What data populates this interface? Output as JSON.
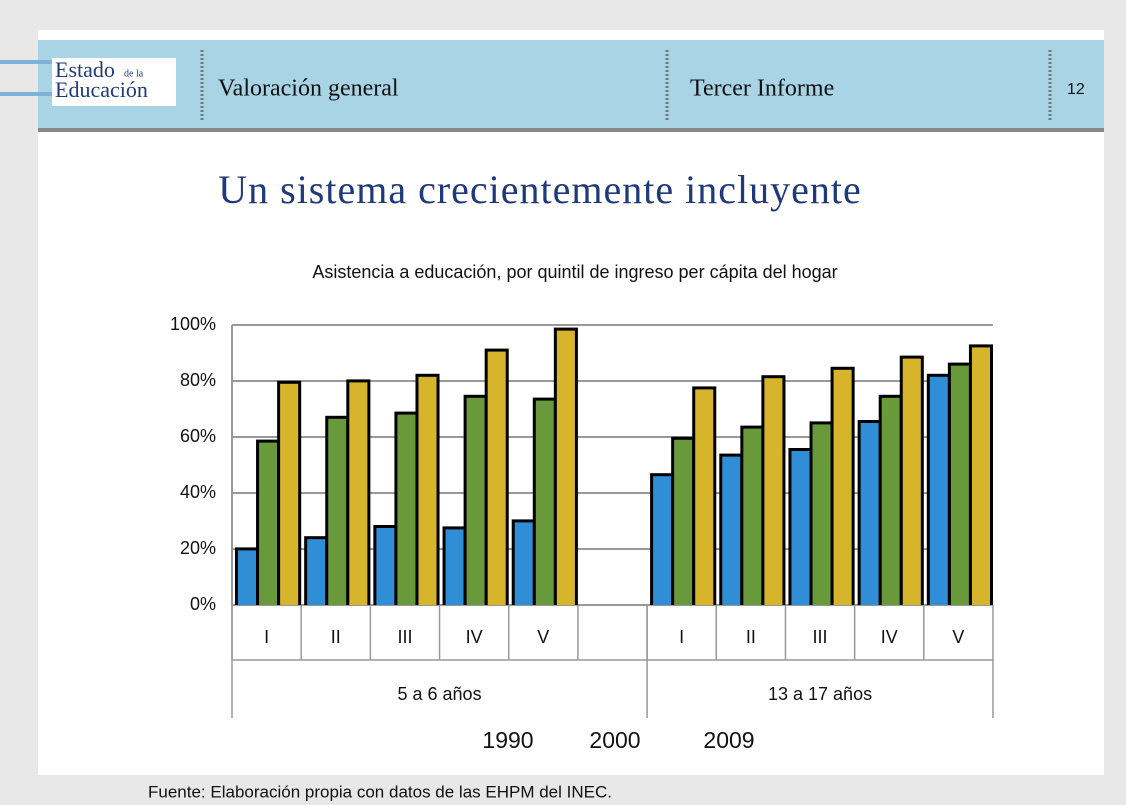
{
  "header": {
    "logo_top": "Estado",
    "logo_small": "de la",
    "logo_bottom": "Educación",
    "section": "Valoración general",
    "report": "Tercer Informe",
    "page": "12"
  },
  "slide_title": "Un sistema crecientemente incluyente",
  "source": "Fuente: Elaboración propia con datos de las EHPM del INEC.",
  "chart_data": {
    "type": "bar",
    "title": "Asistencia a educación, por quintil de ingreso per cápita del hogar",
    "categories": [
      "I",
      "II",
      "III",
      "IV",
      "V",
      null,
      "I",
      "II",
      "III",
      "IV",
      "V"
    ],
    "groups": [
      "5 a 6 años",
      "13 a 17 años"
    ],
    "series": [
      {
        "name": "1990",
        "color": "#2f8ed6",
        "values": [
          19.5,
          23.5,
          27.5,
          27,
          29.5,
          null,
          46,
          53,
          55,
          65,
          81.5
        ]
      },
      {
        "name": "2000",
        "color": "#689a3c",
        "values": [
          58,
          66.5,
          68,
          74,
          73,
          null,
          59,
          63,
          64.5,
          74,
          85.5
        ]
      },
      {
        "name": "2009",
        "color": "#d6b52c",
        "values": [
          79,
          79.5,
          81.5,
          90.5,
          98,
          null,
          77,
          81,
          84,
          88,
          92
        ]
      }
    ],
    "ylim": [
      0,
      100
    ],
    "yticks": [
      {
        "value": 0,
        "label": "0%"
      },
      {
        "value": 20,
        "label": "20%"
      },
      {
        "value": 40,
        "label": "40%"
      },
      {
        "value": 60,
        "label": "60%"
      },
      {
        "value": 80,
        "label": "80%"
      },
      {
        "value": 100,
        "label": "100%"
      }
    ],
    "grid": true
  }
}
